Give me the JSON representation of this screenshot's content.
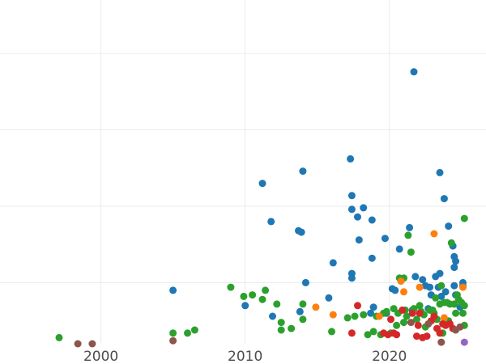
{
  "chart_data": {
    "type": "scatter",
    "title": "",
    "xlabel": "",
    "ylabel": "",
    "xlim": [
      1993.0,
      2026.7
    ],
    "ylim": [
      1.0,
      23.5
    ],
    "x_ticks": [
      2000,
      2010,
      2020
    ],
    "x_tick_labels": [
      "2000",
      "2010",
      "2020"
    ],
    "y_gridlines": [
      5,
      10,
      15,
      20
    ],
    "grid": true,
    "legend": "none",
    "series": [
      {
        "color": "#1f77b4",
        "points": [
          [
            2005.0,
            4.5
          ],
          [
            2010.0,
            3.5
          ],
          [
            2011.2,
            11.5
          ],
          [
            2011.8,
            9.0
          ],
          [
            2011.9,
            2.8
          ],
          [
            2013.7,
            8.4
          ],
          [
            2013.9,
            8.3
          ],
          [
            2014.0,
            12.3
          ],
          [
            2014.2,
            5.0
          ],
          [
            2013.8,
            3.1
          ],
          [
            2015.8,
            4.0
          ],
          [
            2016.1,
            6.3
          ],
          [
            2017.3,
            13.1
          ],
          [
            2017.4,
            10.7
          ],
          [
            2017.4,
            9.8
          ],
          [
            2017.4,
            5.6
          ],
          [
            2017.4,
            5.3
          ],
          [
            2017.8,
            9.3
          ],
          [
            2017.9,
            7.8
          ],
          [
            2018.2,
            9.9
          ],
          [
            2018.8,
            9.1
          ],
          [
            2018.8,
            6.6
          ],
          [
            2018.9,
            3.4
          ],
          [
            2018.7,
            3.0
          ],
          [
            2019.7,
            7.9
          ],
          [
            2020.2,
            4.6
          ],
          [
            2020.4,
            4.5
          ],
          [
            2020.7,
            7.2
          ],
          [
            2021.4,
            8.6
          ],
          [
            2021.7,
            18.8
          ],
          [
            2021.8,
            5.4
          ],
          [
            2022.3,
            5.2
          ],
          [
            2022.5,
            4.8
          ],
          [
            2022.8,
            4.7
          ],
          [
            2022.9,
            4.2
          ],
          [
            2023.2,
            5.4
          ],
          [
            2023.4,
            4.7
          ],
          [
            2023.5,
            12.2
          ],
          [
            2023.5,
            5.6
          ],
          [
            2023.6,
            4.1
          ],
          [
            2023.8,
            10.5
          ],
          [
            2023.9,
            4.4
          ],
          [
            2024.1,
            8.7
          ],
          [
            2024.4,
            7.4
          ],
          [
            2024.5,
            6.7
          ],
          [
            2024.5,
            6.0
          ],
          [
            2024.5,
            4.8
          ],
          [
            2024.6,
            6.4
          ],
          [
            2024.6,
            4.2
          ],
          [
            2024.9,
            3.4
          ],
          [
            2025.1,
            5.0
          ],
          [
            2025.1,
            4.8
          ],
          [
            2021.6,
            3.2
          ],
          [
            2022.7,
            3.3
          ],
          [
            2019.8,
            3.0
          ]
        ]
      },
      {
        "color": "#2ca02c",
        "points": [
          [
            1997.1,
            1.4
          ],
          [
            2005.0,
            1.7
          ],
          [
            2006.0,
            1.7
          ],
          [
            2006.5,
            1.9
          ],
          [
            2009.0,
            4.7
          ],
          [
            2009.9,
            4.1
          ],
          [
            2010.5,
            4.2
          ],
          [
            2011.2,
            3.9
          ],
          [
            2011.4,
            4.5
          ],
          [
            2012.2,
            3.6
          ],
          [
            2012.5,
            2.4
          ],
          [
            2012.5,
            1.9
          ],
          [
            2013.2,
            2.0
          ],
          [
            2014.0,
            3.6
          ],
          [
            2014.0,
            2.6
          ],
          [
            2016.0,
            1.8
          ],
          [
            2017.1,
            2.7
          ],
          [
            2017.6,
            2.8
          ],
          [
            2018.2,
            2.9
          ],
          [
            2018.5,
            1.6
          ],
          [
            2018.9,
            1.8
          ],
          [
            2019.1,
            2.8
          ],
          [
            2019.4,
            1.6
          ],
          [
            2019.6,
            3.0
          ],
          [
            2019.8,
            3.1
          ],
          [
            2020.1,
            1.7
          ],
          [
            2020.3,
            3.3
          ],
          [
            2020.6,
            3.0
          ],
          [
            2020.7,
            5.3
          ],
          [
            2021.0,
            5.3
          ],
          [
            2021.1,
            3.2
          ],
          [
            2021.2,
            2.8
          ],
          [
            2021.3,
            8.1
          ],
          [
            2021.5,
            7.0
          ],
          [
            2021.7,
            3.3
          ],
          [
            2021.9,
            2.6
          ],
          [
            2022.1,
            3.5
          ],
          [
            2022.4,
            2.9
          ],
          [
            2022.5,
            2.1
          ],
          [
            2022.8,
            3.2
          ],
          [
            2023.0,
            3.2
          ],
          [
            2023.1,
            3.0
          ],
          [
            2023.2,
            4.0
          ],
          [
            2023.5,
            3.6
          ],
          [
            2023.6,
            4.8
          ],
          [
            2023.7,
            1.7
          ],
          [
            2023.8,
            3.7
          ],
          [
            2024.0,
            3.7
          ],
          [
            2024.2,
            3.6
          ],
          [
            2024.3,
            7.6
          ],
          [
            2024.5,
            3.6
          ],
          [
            2024.6,
            3.0
          ],
          [
            2024.7,
            4.2
          ],
          [
            2024.8,
            3.9
          ],
          [
            2025.0,
            3.7
          ],
          [
            2025.1,
            3.0
          ],
          [
            2025.2,
            3.5
          ],
          [
            2025.2,
            2.2
          ],
          [
            2025.2,
            9.2
          ],
          [
            2021.0,
            2.4
          ],
          [
            2022.2,
            3.1
          ],
          [
            2023.3,
            2.6
          ],
          [
            2024.1,
            2.5
          ],
          [
            2020.5,
            2.2
          ]
        ]
      },
      {
        "color": "#ff7f0e",
        "points": [
          [
            2014.9,
            3.4
          ],
          [
            2016.1,
            2.9
          ],
          [
            2019.3,
            2.8
          ],
          [
            2020.8,
            5.1
          ],
          [
            2021.0,
            4.4
          ],
          [
            2022.1,
            4.7
          ],
          [
            2023.1,
            8.2
          ],
          [
            2025.1,
            4.7
          ],
          [
            2023.8,
            2.7
          ]
        ]
      },
      {
        "color": "#d62728",
        "points": [
          [
            2017.4,
            1.7
          ],
          [
            2017.8,
            3.5
          ],
          [
            2019.6,
            1.7
          ],
          [
            2019.9,
            1.6
          ],
          [
            2020.3,
            1.7
          ],
          [
            2020.5,
            1.6
          ],
          [
            2020.9,
            3.2
          ],
          [
            2021.6,
            3.0
          ],
          [
            2021.9,
            1.5
          ],
          [
            2022.1,
            3.0
          ],
          [
            2022.3,
            1.4
          ],
          [
            2022.6,
            1.5
          ],
          [
            2022.9,
            2.5
          ],
          [
            2023.1,
            2.8
          ],
          [
            2023.3,
            2.0
          ],
          [
            2023.5,
            1.7
          ],
          [
            2023.7,
            2.3
          ],
          [
            2023.9,
            2.2
          ],
          [
            2024.2,
            2.3
          ],
          [
            2024.4,
            2.0
          ],
          [
            2022.0,
            2.2
          ],
          [
            2020.1,
            2.6
          ]
        ]
      },
      {
        "color": "#8c564b",
        "points": [
          [
            1998.4,
            1.0
          ],
          [
            1999.4,
            1.0
          ],
          [
            2005.0,
            1.2
          ],
          [
            2023.6,
            1.1
          ],
          [
            2024.6,
            1.9
          ],
          [
            2024.9,
            2.1
          ],
          [
            2021.5,
            2.4
          ],
          [
            2022.7,
            2.3
          ]
        ]
      },
      {
        "color": "#9467bd",
        "points": [
          [
            2025.2,
            1.1
          ]
        ]
      }
    ]
  }
}
